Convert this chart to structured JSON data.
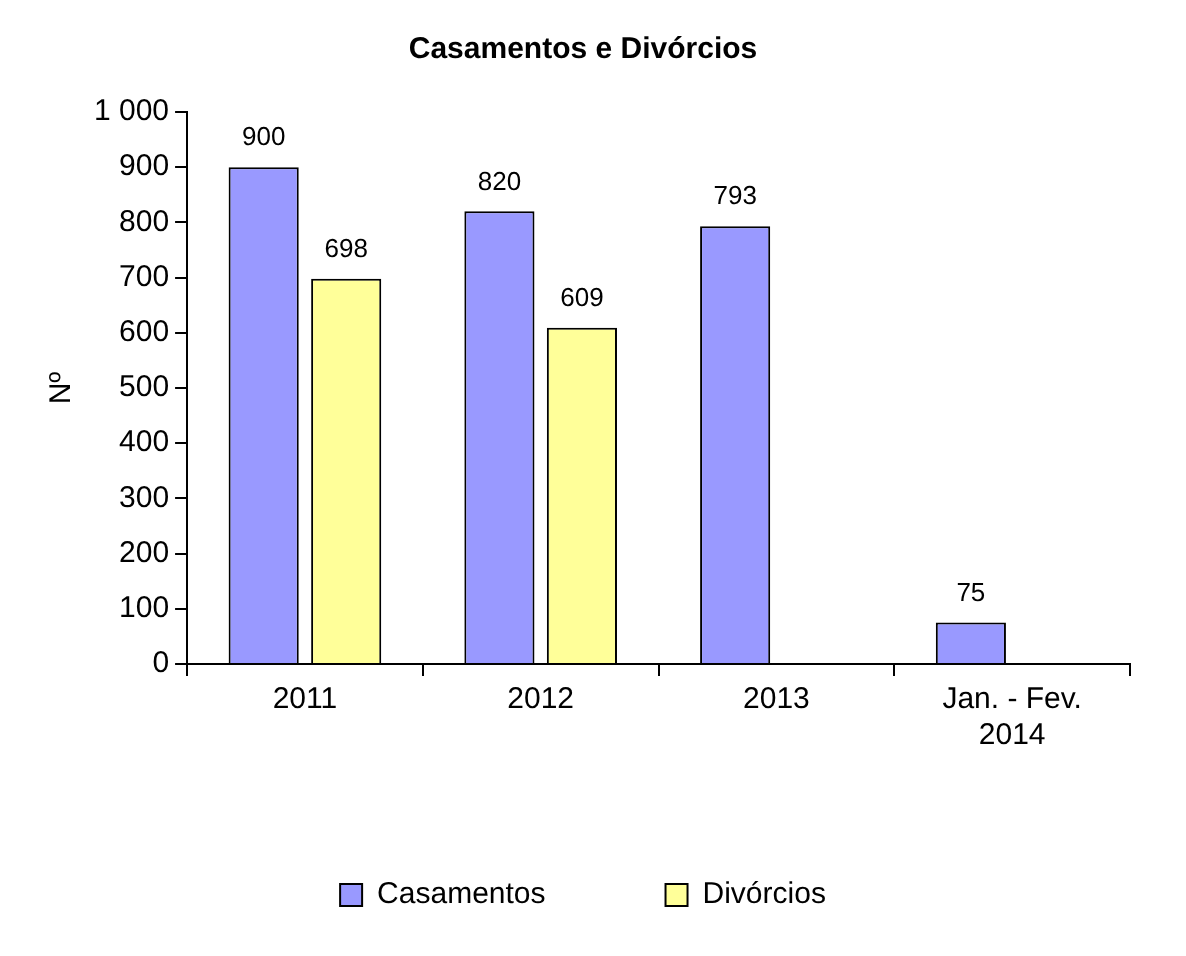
{
  "chart_data": {
    "type": "bar",
    "title": "Casamentos e Divórcios",
    "ylabel": "Nº",
    "categories": [
      "2011",
      "2012",
      "2013",
      "Jan. - Fev. 2014"
    ],
    "series": [
      {
        "name": "Casamentos",
        "color": "#9999ff",
        "values": [
          900,
          820,
          793,
          75
        ]
      },
      {
        "name": "Divórcios",
        "color": "#ffff99",
        "values": [
          698,
          609,
          null,
          null
        ]
      }
    ],
    "ylim": [
      0,
      1000
    ],
    "yticks": [
      0,
      100,
      200,
      300,
      400,
      500,
      600,
      700,
      800,
      {
        "value": 1000,
        "label": "1 000"
      },
      900
    ],
    "grid": false,
    "legend": "bottom",
    "data_labels": true
  }
}
